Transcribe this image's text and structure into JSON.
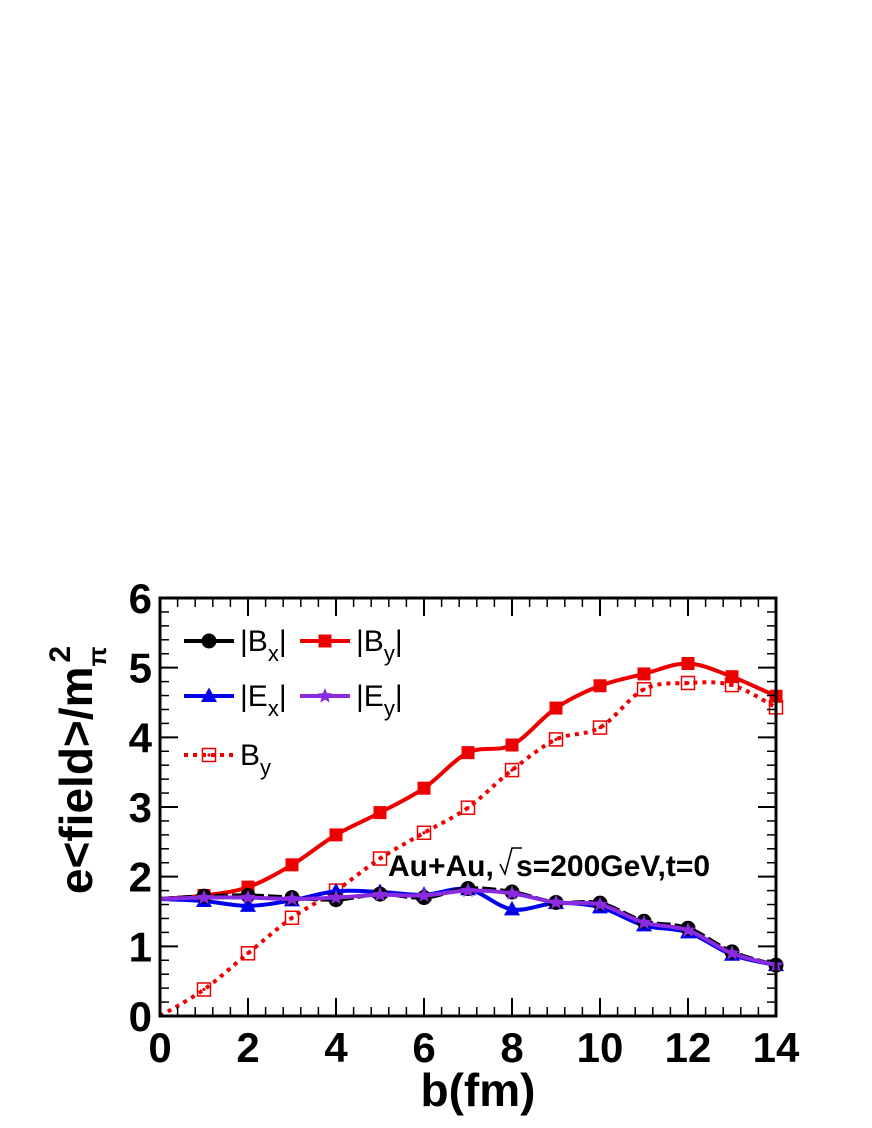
{
  "chart_data": {
    "type": "line",
    "xlabel": "b(fm)",
    "ylabel": "e<field>/m",
    "ylabel_sup": "2",
    "ylabel_sub": "π",
    "xlim": [
      0,
      14
    ],
    "ylim": [
      0,
      6
    ],
    "xticks": [
      "0",
      "2",
      "4",
      "6",
      "8",
      "10",
      "12",
      "14"
    ],
    "yticks": [
      "0",
      "1",
      "2",
      "3",
      "4",
      "5",
      "6"
    ],
    "grid": false,
    "legend_position": "top-left",
    "annotation": {
      "pre": "Au+Au,",
      "post": "s=200GeV,t=0"
    },
    "x": [
      0,
      1,
      2,
      3,
      4,
      5,
      6,
      7,
      8,
      9,
      10,
      11,
      12,
      13,
      14
    ],
    "series": [
      {
        "key": "Bx",
        "legend_main": "|B",
        "legend_sub": "x",
        "legend_end": "|",
        "color": "#000000",
        "marker": "circle",
        "line": "solid",
        "values": [
          1.68,
          1.72,
          1.73,
          1.7,
          1.67,
          1.75,
          1.7,
          1.83,
          1.78,
          1.63,
          1.62,
          1.36,
          1.26,
          0.92,
          0.73
        ]
      },
      {
        "key": "By",
        "legend_main": "|B",
        "legend_sub": "y",
        "legend_end": "|",
        "color": "#ee0000",
        "marker": "square",
        "line": "solid",
        "values": [
          1.68,
          1.73,
          1.85,
          2.17,
          2.6,
          2.92,
          3.27,
          3.78,
          3.89,
          4.42,
          4.74,
          4.91,
          5.06,
          4.87,
          4.59
        ]
      },
      {
        "key": "Ex",
        "legend_main": "|E",
        "legend_sub": "x",
        "legend_end": "|",
        "color": "#0000ee",
        "marker": "triangle",
        "line": "solid",
        "values": [
          1.68,
          1.65,
          1.58,
          1.66,
          1.79,
          1.78,
          1.74,
          1.82,
          1.53,
          1.62,
          1.56,
          1.3,
          1.2,
          0.88,
          0.73
        ]
      },
      {
        "key": "Ey",
        "legend_main": "|E",
        "legend_sub": "y",
        "legend_end": "|",
        "color": "#8a2be2",
        "marker": "star",
        "line": "solid",
        "values": [
          1.68,
          1.7,
          1.7,
          1.68,
          1.7,
          1.74,
          1.73,
          1.8,
          1.76,
          1.63,
          1.6,
          1.34,
          1.23,
          0.9,
          0.73
        ]
      },
      {
        "key": "By_signed",
        "legend_main": "B",
        "legend_sub": "y",
        "legend_end": "",
        "color": "#ee0000",
        "marker": "open-square",
        "line": "dotted",
        "values": [
          0.0,
          0.38,
          0.9,
          1.41,
          1.8,
          2.26,
          2.63,
          2.99,
          3.53,
          3.97,
          4.14,
          4.69,
          4.78,
          4.75,
          4.43
        ]
      }
    ]
  }
}
